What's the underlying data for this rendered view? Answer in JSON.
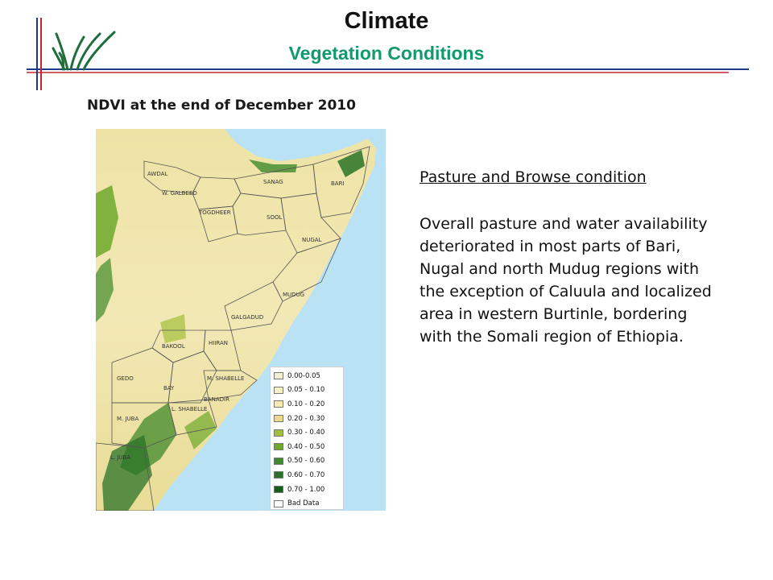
{
  "header": {
    "title": "Climate",
    "subtitle": "Vegetation Conditions"
  },
  "colors": {
    "title_text": "#111111",
    "subtitle_text": "#119a6a",
    "rule_blue": "#1f3a8c",
    "rule_red": "#c4262e",
    "sea": "#b9e2f5",
    "logo_grass": "#1e6d3a"
  },
  "map": {
    "title": "NDVI at the end of December 2010",
    "regions": [
      "AWDAL",
      "W. GALBEED",
      "SANAG",
      "BARI",
      "TOGDHEER",
      "SOOL",
      "NUGAL",
      "MUDUG",
      "GALGADUD",
      "HIIRAN",
      "BAKOOL",
      "GEDO",
      "BAY",
      "M. SHABELLE",
      "BANADIR",
      "L. SHABELLE",
      "M. JUBA",
      "L. JUBA"
    ],
    "legend": [
      {
        "label": "0.00-0.05",
        "color": "#f3eed2"
      },
      {
        "label": "0.05 - 0.10",
        "color": "#f7f1c4"
      },
      {
        "label": "0.10 - 0.20",
        "color": "#f6eab0"
      },
      {
        "label": "0.20 - 0.30",
        "color": "#eed889"
      },
      {
        "label": "0.30 - 0.40",
        "color": "#a2c13a"
      },
      {
        "label": "0.40 - 0.50",
        "color": "#6da82a"
      },
      {
        "label": "0.50 - 0.60",
        "color": "#3f8a2a"
      },
      {
        "label": "0.60 - 0.70",
        "color": "#2a7327"
      },
      {
        "label": "0.70 - 1.00",
        "color": "#155f1b"
      },
      {
        "label": "Bad Data",
        "color": "#ffffff"
      }
    ]
  },
  "panel": {
    "heading": "Pasture and Browse condition",
    "body": "Overall pasture and water availability deteriorated in most parts of Bari, Nugal and north Mudug regions with the exception of Caluula and localized area in western Burtinle, bordering with the Somali region of Ethiopia."
  }
}
